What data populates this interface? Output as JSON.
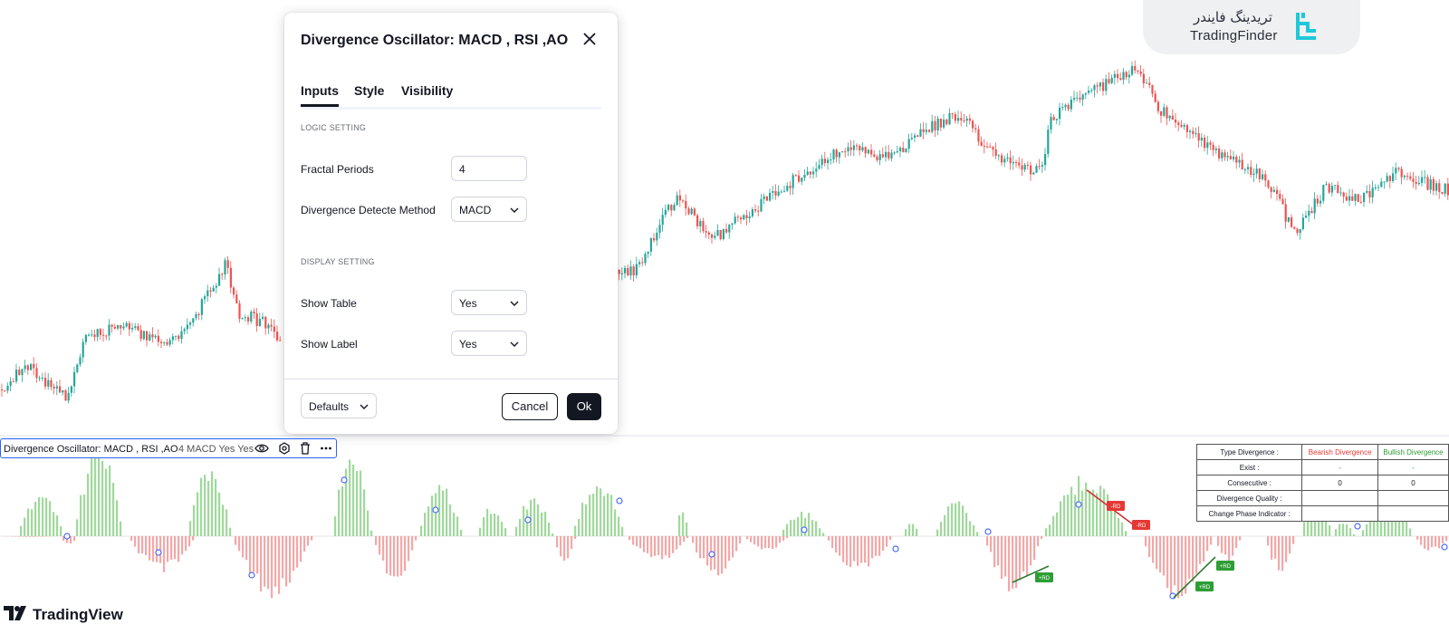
{
  "brand": {
    "name_fa": "تریدینگ فایندر",
    "name_en": "TradingFinder",
    "logo_icon": "tradingfinder-logo-icon"
  },
  "colors": {
    "up": "#26a69a",
    "down": "#ef5350",
    "hist_pos": "#9fd99b",
    "hist_neg": "#f4a7a7",
    "pivot": "#4a6cf7",
    "bear_line": "#d32f2f",
    "bull_line": "#2e7d32",
    "bear_tag": "#e53935",
    "bull_tag": "#2e9d35",
    "accent": "#2962ff"
  },
  "dialog": {
    "title": "Divergence Oscillator: MACD , RSI ,AO",
    "close_icon": "close-icon",
    "tabs": [
      {
        "label": "Inputs",
        "active": true
      },
      {
        "label": "Style",
        "active": false
      },
      {
        "label": "Visibility",
        "active": false
      }
    ],
    "sections": {
      "logic": "LOGIC SETTING",
      "display": "DISPLAY SETTING"
    },
    "fields": {
      "fractal_periods": {
        "label": "Fractal Periods",
        "value": "4"
      },
      "divergence_method": {
        "label": "Divergence Detecte Method",
        "value": "MACD"
      },
      "show_table": {
        "label": "Show Table",
        "value": "Yes"
      },
      "show_label": {
        "label": "Show Label",
        "value": "Yes"
      }
    },
    "footer": {
      "defaults_label": "Defaults",
      "cancel_label": "Cancel",
      "ok_label": "Ok"
    }
  },
  "legend": {
    "name": "Divergence Oscillator: MACD , RSI ,AO",
    "values": "4 MACD Yes Yes",
    "icons": [
      "eye-icon",
      "settings-icon",
      "trash-icon",
      "more-icon"
    ]
  },
  "table": {
    "headers": [
      "Type Divergence :",
      "Bearish Divergence",
      "Bullish Divergence"
    ],
    "rows": [
      {
        "label": "Exist :",
        "bearish": "-",
        "bullish": "-"
      },
      {
        "label": "Consecutive :",
        "bearish": "0",
        "bullish": "0"
      },
      {
        "label": "Divergence Quality :",
        "bearish": "",
        "bullish": ""
      },
      {
        "label": "Change Phase Indicator :",
        "bearish": "",
        "bullish": ""
      }
    ]
  },
  "signal_labels": {
    "bearish": "-RD",
    "bullish": "+RD"
  },
  "footer_brand": {
    "name": "TradingView",
    "logo_icon": "tradingview-logo-icon"
  }
}
